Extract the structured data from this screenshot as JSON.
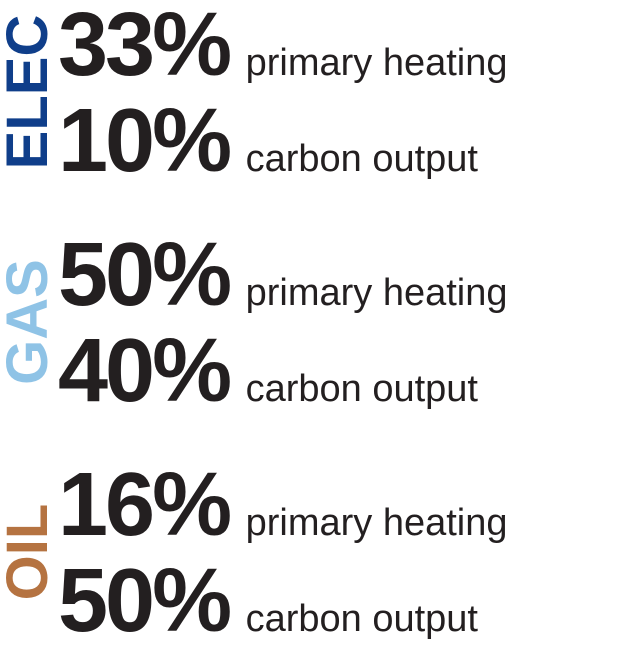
{
  "type": "infographic",
  "background_color": "#ffffff",
  "text_color": "#231f20",
  "pct_fontsize": 90,
  "pct_fontweight": 900,
  "desc_fontsize": 38,
  "desc_fontweight": 400,
  "vlabel_fontsize": 58,
  "vlabel_fontweight": 900,
  "groups": [
    {
      "label": "ELEC",
      "label_color": "#0f3e8a",
      "row1_pct": "33%",
      "row1_desc": "primary heating",
      "row2_pct": "10%",
      "row2_desc": "carbon output"
    },
    {
      "label": "GAS",
      "label_color": "#8fc3e6",
      "row1_pct": "50%",
      "row1_desc": "primary heating",
      "row2_pct": "40%",
      "row2_desc": "carbon output"
    },
    {
      "label": "OIL",
      "label_color": "#b57341",
      "row1_pct": "16%",
      "row1_desc": "primary heating",
      "row2_pct": "50%",
      "row2_desc": "carbon output"
    }
  ]
}
